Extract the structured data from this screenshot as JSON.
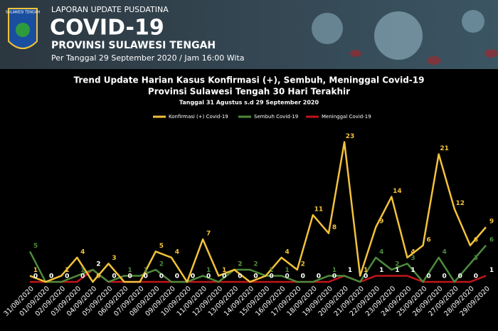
{
  "header": {
    "badge": "SULAWESI TENGAH",
    "kicker": "LAPORAN UPDATE PUSDATINA",
    "title": "COVID-19",
    "subtitle": "PROVINSI SULAWESI TENGAH",
    "date": "Per Tanggal 29 September 2020 / Jam 16:00 Wita"
  },
  "chart_data": {
    "type": "line",
    "title": [
      "Trend Update Harian Kasus Konfirmasi (+), Sembuh, Meninggal Covid-19",
      "Provinsi Sulawesi Tengah 30 Hari Terakhir"
    ],
    "subtitle": "Tanggal 31 Agustus s.d 29 September 2020",
    "categories": [
      "31/08/2020",
      "01/09/2020",
      "02/09/2020",
      "03/09/2020",
      "04/09/2020",
      "05/09/2020",
      "06/09/2020",
      "07/09/2020",
      "08/09/2020",
      "09/09/2020",
      "10/09/2020",
      "11/09/2020",
      "12/09/2020",
      "13/09/2020",
      "14/09/2020",
      "15/09/2020",
      "16/09/2020",
      "17/09/2020",
      "18/09/2020",
      "19/09/2020",
      "20/09/2020",
      "21/09/2020",
      "22/09/2020",
      "23/09/2020",
      "24/09/2020",
      "25/09/2020",
      "26/09/2020",
      "27/09/2020",
      "28/09/2020",
      "29/09/2020"
    ],
    "series": [
      {
        "name": "Konfirmasi (+) Covid-19",
        "color": "#f2c23a",
        "values": [
          1,
          0,
          1,
          4,
          0,
          3,
          0,
          0,
          5,
          4,
          0,
          7,
          1,
          2,
          0,
          1,
          4,
          2,
          11,
          8,
          23,
          1,
          9,
          14,
          4,
          6,
          21,
          12,
          6,
          9
        ]
      },
      {
        "name": "Sembuh Covid-19",
        "color": "#4e8a3e",
        "values": [
          5,
          0,
          0,
          1,
          2,
          0,
          1,
          1,
          2,
          0,
          0,
          1,
          0,
          2,
          2,
          1,
          1,
          0,
          0,
          1,
          1,
          0,
          4,
          2,
          3,
          0,
          4,
          0,
          3,
          6
        ]
      },
      {
        "name": "Meninggal Covid-19",
        "color": "#c0161b",
        "values": [
          0,
          0,
          0,
          0,
          2,
          0,
          0,
          0,
          0,
          0,
          0,
          0,
          0,
          0,
          0,
          0,
          0,
          0,
          0,
          0,
          1,
          0,
          1,
          1,
          1,
          0,
          0,
          0,
          0,
          1
        ]
      }
    ],
    "ylim": [
      0,
      24
    ],
    "legend": "top"
  }
}
